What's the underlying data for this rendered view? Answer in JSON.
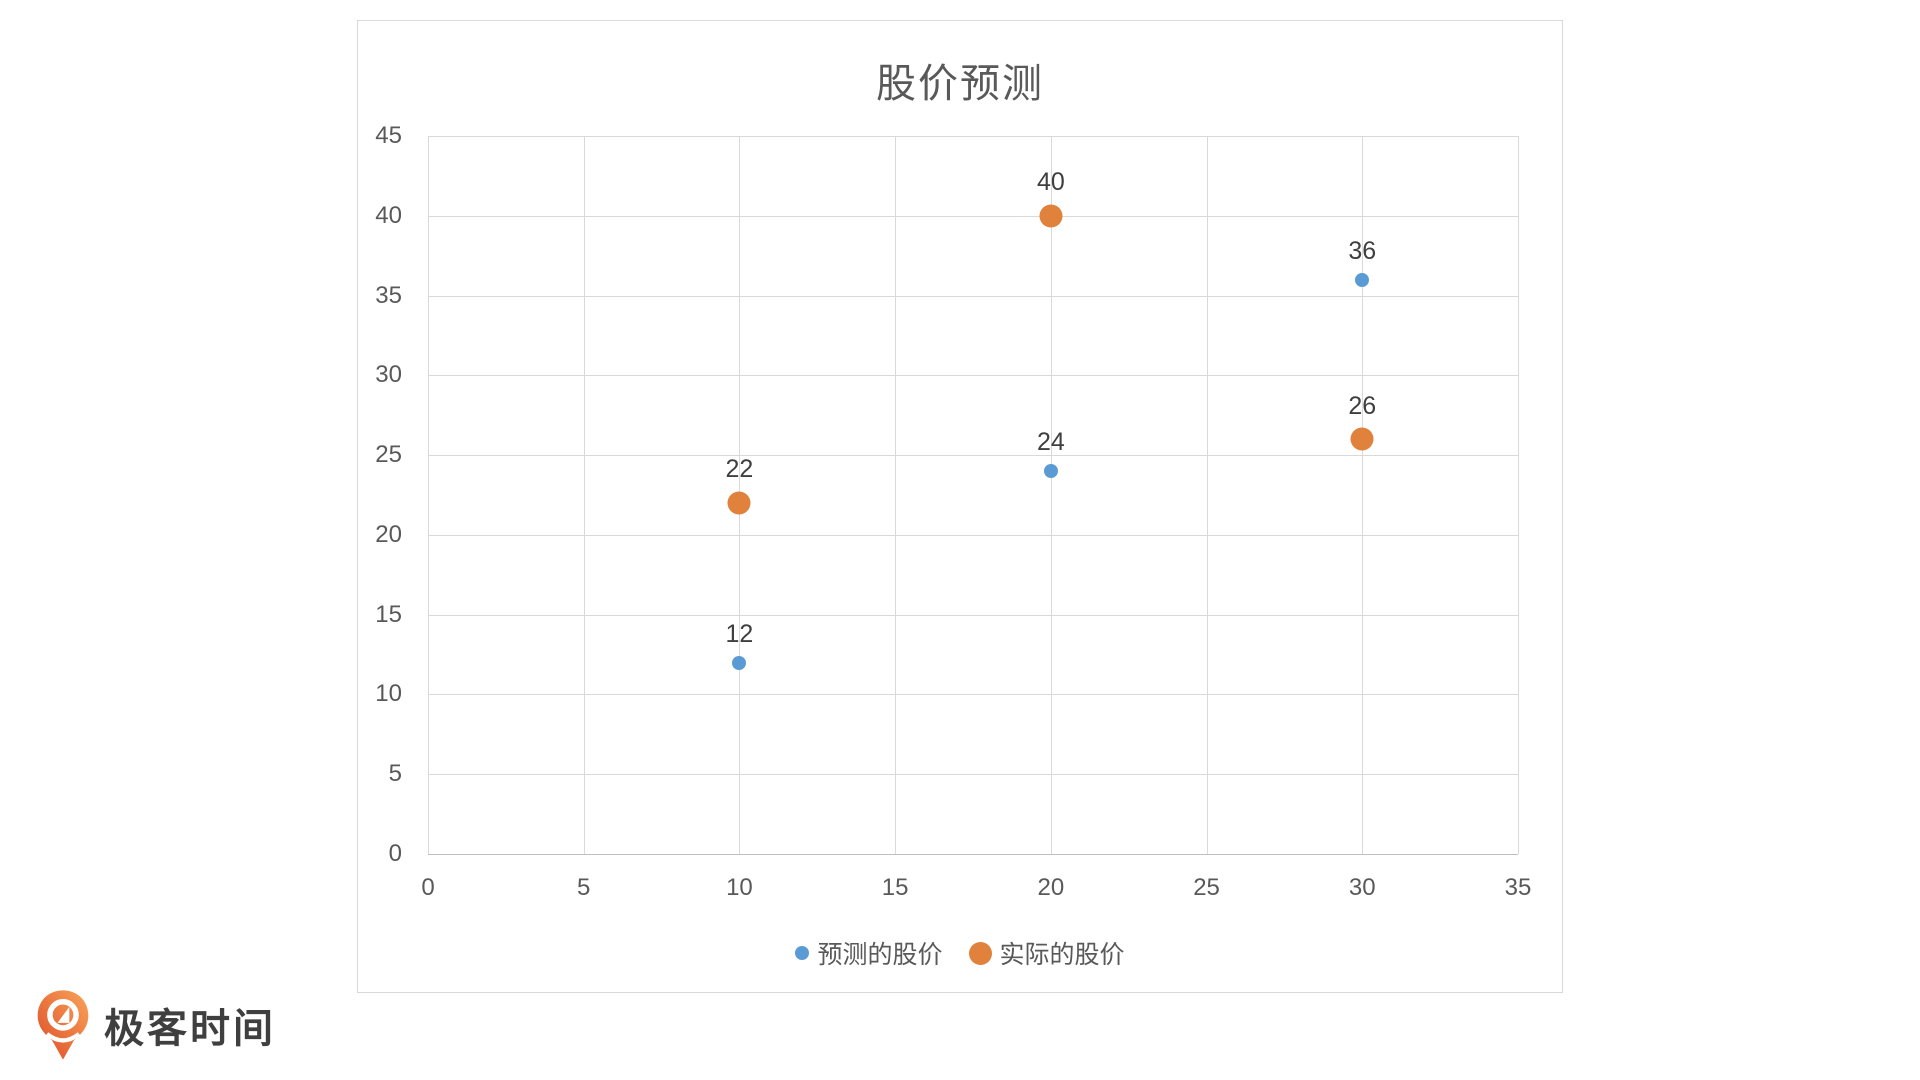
{
  "chart_data": {
    "type": "scatter",
    "title": "股价预测",
    "xlabel": "",
    "ylabel": "",
    "xlim": [
      0,
      35
    ],
    "ylim": [
      0,
      45
    ],
    "x_ticks": [
      0,
      5,
      10,
      15,
      20,
      25,
      30,
      35
    ],
    "y_ticks": [
      0,
      5,
      10,
      15,
      20,
      25,
      30,
      35,
      40,
      45
    ],
    "grid": true,
    "legend_position": "bottom",
    "series": [
      {
        "name": "预测的股价",
        "color": "#5B9BD5",
        "marker_size": 14,
        "points": [
          {
            "x": 10,
            "y": 12,
            "label": "12"
          },
          {
            "x": 20,
            "y": 24,
            "label": "24"
          },
          {
            "x": 30,
            "y": 36,
            "label": "36"
          }
        ]
      },
      {
        "name": "实际的股价",
        "color": "#E0813C",
        "marker_size": 23,
        "points": [
          {
            "x": 10,
            "y": 22,
            "label": "22"
          },
          {
            "x": 20,
            "y": 40,
            "label": "40"
          },
          {
            "x": 30,
            "y": 26,
            "label": "26"
          }
        ]
      }
    ]
  },
  "styles": {
    "grid_color": "#D9D9D9",
    "axis_line_color": "#BFBFBF",
    "border_color": "#D9D9D9",
    "title_color": "#595959",
    "tick_label_color": "#595959",
    "data_label_color": "#3F3F3F",
    "legend_text_color": "#595959"
  },
  "brand": {
    "logo_text": "极客时间",
    "logo_orange_light": "#F9A459",
    "logo_orange_dark": "#DD4B27"
  }
}
